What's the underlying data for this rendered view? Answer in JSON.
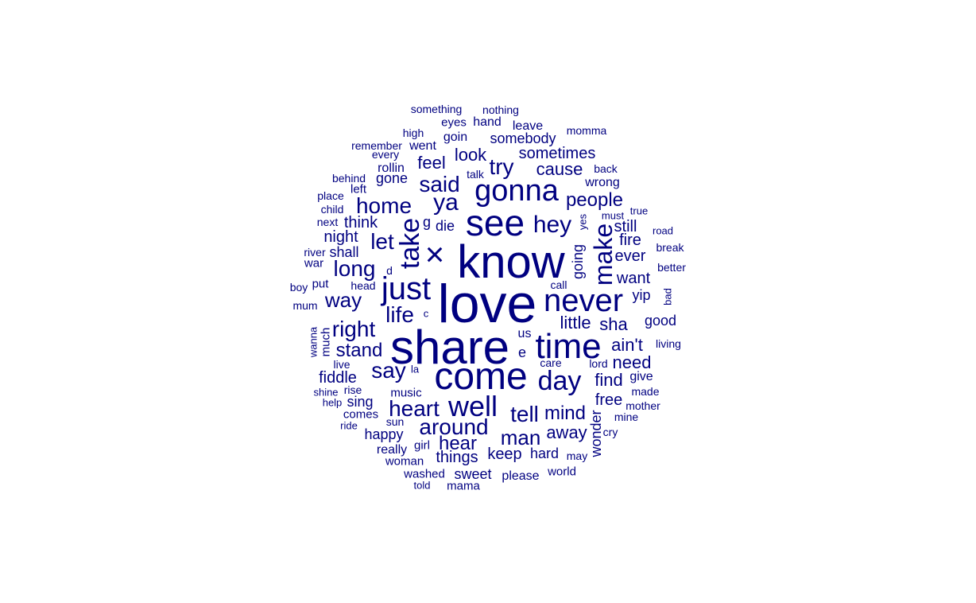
{
  "color": "#000080",
  "words": [
    "love",
    "share",
    "know",
    "come",
    "time",
    "see",
    "never",
    "gonna",
    "just",
    "well",
    "day",
    "take",
    "hey",
    "×",
    "make",
    "ya",
    "say",
    "heart",
    "tell",
    "around",
    "home",
    "said",
    "let",
    "man",
    "long",
    "right",
    "life",
    "people",
    "mind",
    "hear",
    "way",
    "stand",
    "try",
    "cause",
    "ain't",
    "away",
    "find",
    "need",
    "feel",
    "look",
    "sometimes",
    "little",
    "sha",
    "fiddle",
    "free",
    "want",
    "ever",
    "fire",
    "still",
    "night",
    "think",
    "things",
    "keep",
    "somebody",
    "going",
    "sweet",
    "happy",
    "hard",
    "shall",
    "sing",
    "gone",
    "yip",
    "good",
    "give",
    "wonder",
    "die",
    "rollin",
    "goin",
    "hand",
    "eyes",
    "leave",
    "went",
    "world",
    "please",
    "music",
    "comes",
    "girl",
    "mama",
    "wrong",
    "really",
    "washed",
    "woman",
    "momma",
    "nothing",
    "something",
    "high",
    "remember",
    "every",
    "behind",
    "left",
    "place",
    "child",
    "next",
    "river",
    "war",
    "boy",
    "put",
    "head",
    "mum",
    "talk",
    "back",
    "true",
    "must",
    "yes",
    "road",
    "break",
    "better",
    "call",
    "bad",
    "living",
    "much",
    "wanna",
    "live",
    "rise",
    "shine",
    "help",
    "ride",
    "sun",
    "us",
    "e",
    "la",
    "care",
    "lord",
    "made",
    "mother",
    "mine",
    "cry",
    "may",
    "told",
    "g",
    "d",
    "c"
  ]
}
